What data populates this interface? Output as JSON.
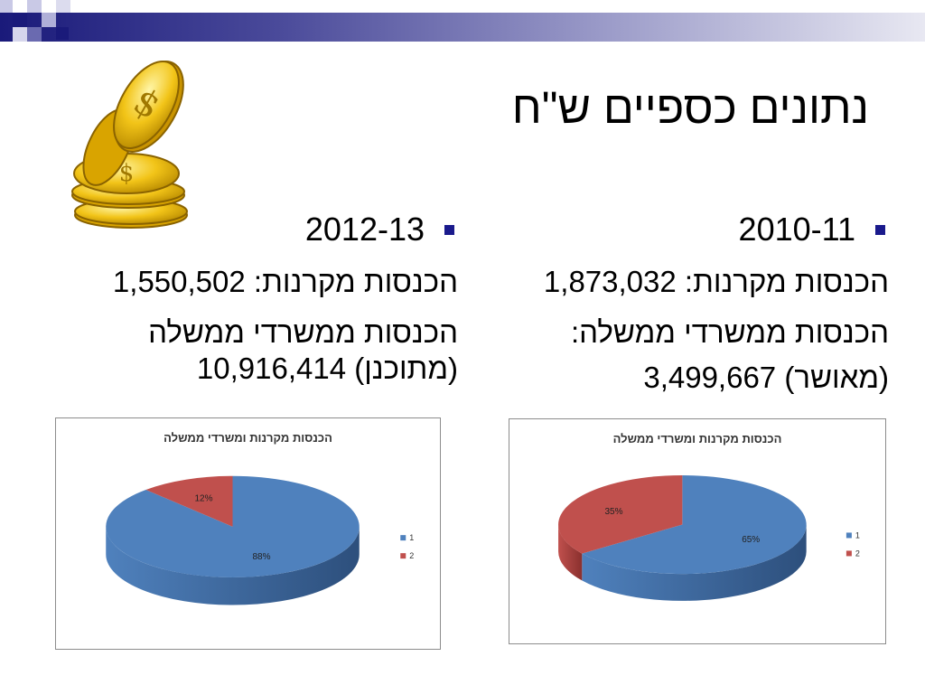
{
  "slide": {
    "title": "נתונים כספיים ש\"ח"
  },
  "columns": [
    {
      "year": "2010-11",
      "line1": "הכנסות מקרנות: 1,873,032",
      "line2": "הכנסות ממשרדי ממשלה:",
      "line3": "(מאושר) 3,499,667"
    },
    {
      "year": "2012-13",
      "line1": "הכנסות מקרנות: 1,550,502",
      "line2": "הכנסות ממשרדי ממשלה",
      "line3": "(מתוכנן) 10,916,414"
    }
  ],
  "colors": {
    "series1": "#4f81bd",
    "series2": "#c0504d",
    "bullet": "#1a1a8c"
  },
  "chart_data": [
    {
      "type": "pie",
      "title": "הכנסות מקרנות ומשרדי ממשלה",
      "categories": [
        "1",
        "2"
      ],
      "values": [
        65,
        35
      ],
      "labels": [
        "65%",
        "35%"
      ],
      "legend": "right",
      "style": "3d"
    },
    {
      "type": "pie",
      "title": "הכנסות מקרנות ומשרדי ממשלה",
      "categories": [
        "1",
        "2"
      ],
      "values": [
        88,
        12
      ],
      "labels": [
        "88%",
        "12%"
      ],
      "legend": "right",
      "style": "3d"
    }
  ],
  "icons": [
    "coins-icon",
    "bullet-icon"
  ]
}
